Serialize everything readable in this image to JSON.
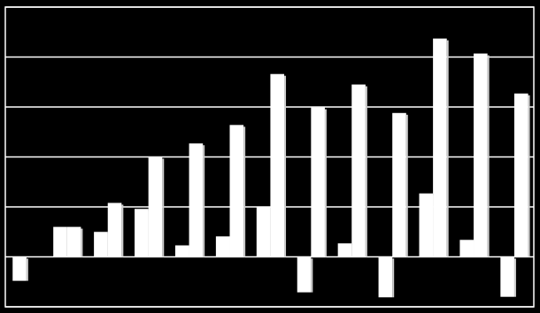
{
  "chart_data": {
    "type": "bar",
    "categories": [
      null,
      null,
      null,
      null,
      null,
      null,
      null,
      null,
      null,
      null,
      null,
      null,
      null
    ],
    "series": [
      {
        "color": "#ffffff",
        "values": [
          -0.48,
          0.6,
          0.5,
          0.96,
          0.23,
          0.41,
          1.0,
          -0.71,
          0.27,
          -0.81,
          1.27,
          0.34,
          -0.8
        ]
      },
      {
        "color": "#ffffff",
        "values": [
          0,
          0.6,
          1.08,
          2.0,
          2.27,
          2.64,
          3.66,
          2.99,
          3.45,
          2.88,
          4.37,
          4.07,
          3.27
        ]
      }
    ],
    "ylim": [
      -1,
      5
    ],
    "yticks": [
      -1,
      0,
      1,
      2,
      3,
      4,
      5
    ],
    "grid": true,
    "background": "#000000"
  }
}
